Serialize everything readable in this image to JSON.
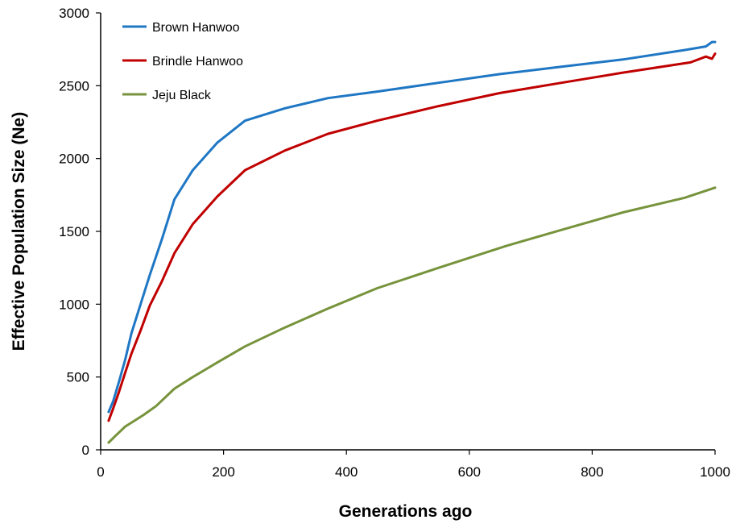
{
  "chart_data": {
    "type": "line",
    "title": "",
    "xlabel": "Generations ago",
    "ylabel": "Effective Population Size (Ne)",
    "xlim": [
      0,
      1000
    ],
    "ylim": [
      0,
      3000
    ],
    "x_ticks": [
      0,
      200,
      400,
      600,
      800,
      1000
    ],
    "y_ticks": [
      0,
      500,
      1000,
      1500,
      2000,
      2500,
      3000
    ],
    "grid": false,
    "legend_position": "top-left",
    "series": [
      {
        "name": "Brown Hanwoo",
        "color": "#1F77C4",
        "points": [
          [
            13,
            260
          ],
          [
            20,
            330
          ],
          [
            30,
            470
          ],
          [
            40,
            620
          ],
          [
            50,
            800
          ],
          [
            65,
            1000
          ],
          [
            80,
            1200
          ],
          [
            100,
            1450
          ],
          [
            120,
            1720
          ],
          [
            150,
            1920
          ],
          [
            190,
            2110
          ],
          [
            235,
            2260
          ],
          [
            300,
            2345
          ],
          [
            370,
            2415
          ],
          [
            450,
            2460
          ],
          [
            550,
            2520
          ],
          [
            650,
            2580
          ],
          [
            750,
            2630
          ],
          [
            850,
            2680
          ],
          [
            950,
            2745
          ],
          [
            985,
            2770
          ],
          [
            995,
            2800
          ],
          [
            1000,
            2800
          ]
        ]
      },
      {
        "name": "Brindle Hanwoo",
        "color": "#C00000",
        "points": [
          [
            13,
            200
          ],
          [
            20,
            280
          ],
          [
            30,
            400
          ],
          [
            40,
            530
          ],
          [
            50,
            660
          ],
          [
            65,
            820
          ],
          [
            80,
            990
          ],
          [
            100,
            1160
          ],
          [
            120,
            1350
          ],
          [
            150,
            1550
          ],
          [
            190,
            1740
          ],
          [
            235,
            1920
          ],
          [
            300,
            2055
          ],
          [
            370,
            2170
          ],
          [
            450,
            2260
          ],
          [
            550,
            2360
          ],
          [
            650,
            2450
          ],
          [
            750,
            2520
          ],
          [
            850,
            2590
          ],
          [
            960,
            2660
          ],
          [
            985,
            2700
          ],
          [
            995,
            2685
          ],
          [
            1000,
            2720
          ]
        ]
      },
      {
        "name": "Jeju Black",
        "color": "#77933C",
        "points": [
          [
            13,
            50
          ],
          [
            25,
            100
          ],
          [
            40,
            160
          ],
          [
            55,
            200
          ],
          [
            70,
            240
          ],
          [
            90,
            300
          ],
          [
            120,
            420
          ],
          [
            150,
            500
          ],
          [
            190,
            600
          ],
          [
            235,
            710
          ],
          [
            300,
            840
          ],
          [
            370,
            970
          ],
          [
            450,
            1110
          ],
          [
            550,
            1250
          ],
          [
            660,
            1400
          ],
          [
            750,
            1510
          ],
          [
            850,
            1630
          ],
          [
            950,
            1730
          ],
          [
            1000,
            1800
          ]
        ]
      }
    ]
  }
}
